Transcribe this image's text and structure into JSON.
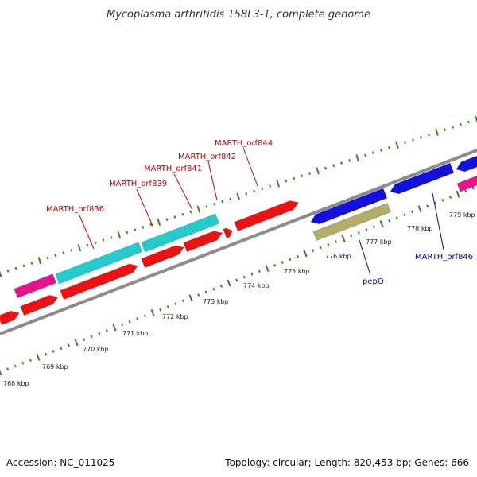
{
  "title": "Mycoplasma arthritidis 158L3-1, complete genome",
  "footer": {
    "accession": "Accession: NC_011025",
    "summary": "Topology: circular; Length: 820,453 bp; Genes: 666"
  },
  "colors": {
    "background": "#ffffff",
    "backbone": "#8c8c8c",
    "tick": "#2e8b1e",
    "forward_red": "#f01010",
    "cyan": "#22cccc",
    "magenta": "#e8138a",
    "blue": "#1010e0",
    "olive": "#b3ad6a",
    "label_red": "#cc0000",
    "label_blue": "#0000bb"
  },
  "scale_labels": [
    "768 kbp",
    "769 kbp",
    "770 kbp",
    "771 kbp",
    "772 kbp",
    "773 kbp",
    "774 kbp",
    "775 kbp",
    "776 kbp",
    "777 kbp",
    "778 kbp",
    "779 kbp"
  ],
  "gene_labels": [
    {
      "text": "MARTH_orf836",
      "color": "red"
    },
    {
      "text": "MARTH_orf839",
      "color": "red"
    },
    {
      "text": "MARTH_orf841",
      "color": "red"
    },
    {
      "text": "MARTH_orf842",
      "color": "red"
    },
    {
      "text": "MARTH_orf844",
      "color": "red"
    },
    {
      "text": "pepO",
      "color": "blue"
    },
    {
      "text": "MARTH_orf846",
      "color": "blue"
    }
  ]
}
